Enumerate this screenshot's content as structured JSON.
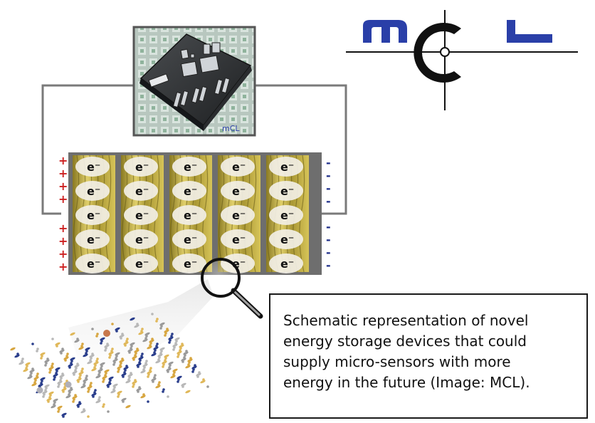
{
  "logo": {
    "text": "MCL",
    "colors": {
      "letters": "#2a3fa8",
      "ring": "#111111"
    }
  },
  "device_photo": {
    "chip_label": "mCL"
  },
  "cell": {
    "electron_symbol": "e⁻",
    "columns": 5,
    "rows": 5,
    "plus_sign": "+",
    "plus_count": 8,
    "minus_sign": "-",
    "minus_count": 8,
    "colors": {
      "plus": "#cc1f1f",
      "minus": "#1f2f8a",
      "electrode": "#c8b84a",
      "separator": "#808080",
      "ellipse": "#f2efe6"
    }
  },
  "icons": {
    "magnifier": "magnifying-glass-icon"
  },
  "caption": {
    "lines": [
      "Schematic representation of novel",
      "energy storage devices that could",
      "supply micro-sensors with more",
      "energy in the future (Image: MCL)."
    ]
  }
}
